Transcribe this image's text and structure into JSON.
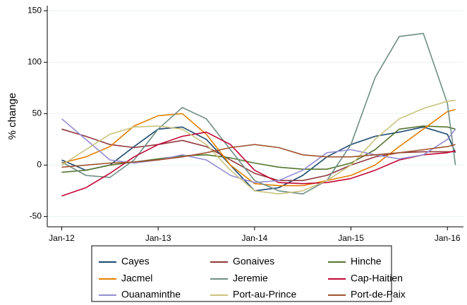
{
  "chart_data": {
    "type": "line",
    "y_label": "% change",
    "x": [
      0,
      3,
      6,
      9,
      12,
      15,
      18,
      21,
      24,
      27,
      30,
      33,
      36,
      39,
      42,
      45,
      48,
      49
    ],
    "xlim": [
      -1.8,
      50
    ],
    "xticks": [
      {
        "value": 0,
        "label": "Jan-12"
      },
      {
        "value": 12,
        "label": "Jan-13"
      },
      {
        "value": 24,
        "label": "Jan-14"
      },
      {
        "value": 36,
        "label": "Jan-15"
      },
      {
        "value": 48,
        "label": "Jan-16"
      }
    ],
    "ylim": [
      -60,
      155
    ],
    "yticks": [
      -50,
      0,
      50,
      100,
      150
    ],
    "grid": true,
    "series": [
      {
        "name": "Cayes",
        "color": "#1a476f",
        "values": [
          5,
          -5,
          0,
          18,
          35,
          37,
          25,
          0,
          -25,
          -22,
          -10,
          8,
          20,
          28,
          32,
          37,
          30,
          12
        ]
      },
      {
        "name": "Gonaives",
        "color": "#90353b",
        "values": [
          35,
          28,
          20,
          17,
          20,
          24,
          18,
          5,
          -8,
          -15,
          -15,
          -10,
          0,
          8,
          12,
          13,
          13,
          13
        ]
      },
      {
        "name": "Hinche",
        "color": "#55752f",
        "values": [
          -7,
          -5,
          0,
          3,
          6,
          9,
          10,
          7,
          2,
          -2,
          -4,
          -4,
          2,
          15,
          35,
          38,
          37,
          35
        ]
      },
      {
        "name": "Jacmel",
        "color": "#e37e00",
        "values": [
          2,
          8,
          18,
          38,
          48,
          50,
          30,
          0,
          -18,
          -20,
          -20,
          -15,
          -10,
          0,
          18,
          35,
          52,
          54
        ]
      },
      {
        "name": "Jeremie",
        "color": "#6e8e84",
        "values": [
          3,
          -10,
          -12,
          5,
          35,
          56,
          45,
          15,
          -15,
          -25,
          -28,
          -15,
          20,
          85,
          125,
          128,
          60,
          0
        ]
      },
      {
        "name": "Cap-Haitien",
        "color": "#c10534",
        "values": [
          -30,
          -22,
          -8,
          8,
          20,
          28,
          32,
          20,
          -5,
          -17,
          -18,
          -17,
          -13,
          -5,
          5,
          10,
          12,
          14
        ]
      },
      {
        "name": "Ouanaminthe",
        "color": "#938dd2",
        "values": [
          45,
          25,
          5,
          2,
          5,
          10,
          5,
          -10,
          -17,
          -15,
          -5,
          12,
          15,
          10,
          6,
          10,
          25,
          35
        ]
      },
      {
        "name": "Port-au-Prince",
        "color": "#cac27e",
        "values": [
          0,
          15,
          30,
          37,
          38,
          35,
          20,
          -5,
          -25,
          -28,
          -25,
          -15,
          0,
          25,
          45,
          55,
          62,
          63
        ]
      },
      {
        "name": "Port-de-Paix",
        "color": "#a0522d",
        "values": [
          -2,
          0,
          2,
          3,
          5,
          8,
          12,
          17,
          20,
          17,
          10,
          8,
          8,
          10,
          12,
          15,
          18,
          20
        ]
      }
    ]
  }
}
